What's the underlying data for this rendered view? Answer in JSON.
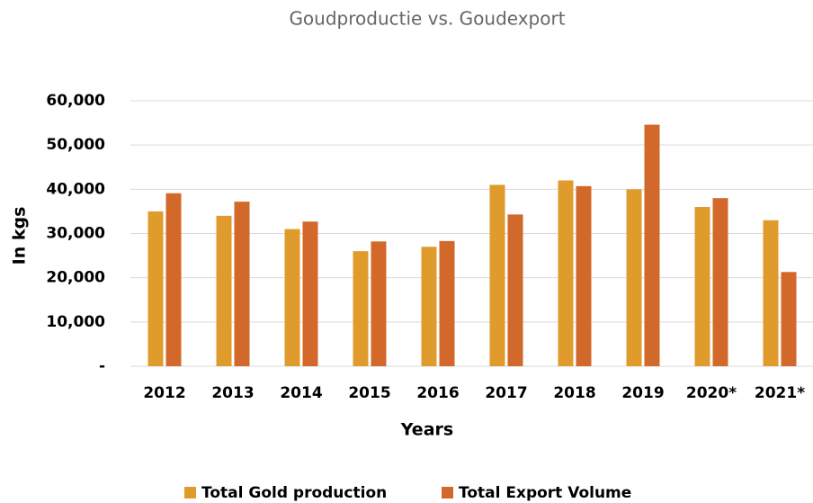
{
  "chart_data": {
    "type": "bar",
    "title": "Goudproductie vs. Goudexport",
    "x_label": "Years",
    "y_label": "In kgs",
    "categories": [
      "2012",
      "2013",
      "2014",
      "2015",
      "2016",
      "2017",
      "2018",
      "2019",
      "2020*",
      "2021*"
    ],
    "series": [
      {
        "name": "Total Gold production",
        "color": "#e09b2d",
        "values": [
          35000,
          34000,
          31000,
          26000,
          27000,
          41000,
          42000,
          40000,
          36000,
          33000
        ]
      },
      {
        "name": "Total Export Volume",
        "color": "#d2692a",
        "values": [
          39100,
          37200,
          32700,
          28200,
          28300,
          34300,
          40700,
          54600,
          38000,
          21300
        ]
      }
    ],
    "ylim": [
      0,
      60000
    ],
    "yticks": [
      {
        "value": 0,
        "label": "-"
      },
      {
        "value": 10000,
        "label": "10,000"
      },
      {
        "value": 20000,
        "label": "20,000"
      },
      {
        "value": 30000,
        "label": "30,000"
      },
      {
        "value": 40000,
        "label": "40,000"
      },
      {
        "value": 50000,
        "label": "50,000"
      },
      {
        "value": 60000,
        "label": "60,000"
      }
    ],
    "grid": true,
    "legend": "bottom"
  }
}
